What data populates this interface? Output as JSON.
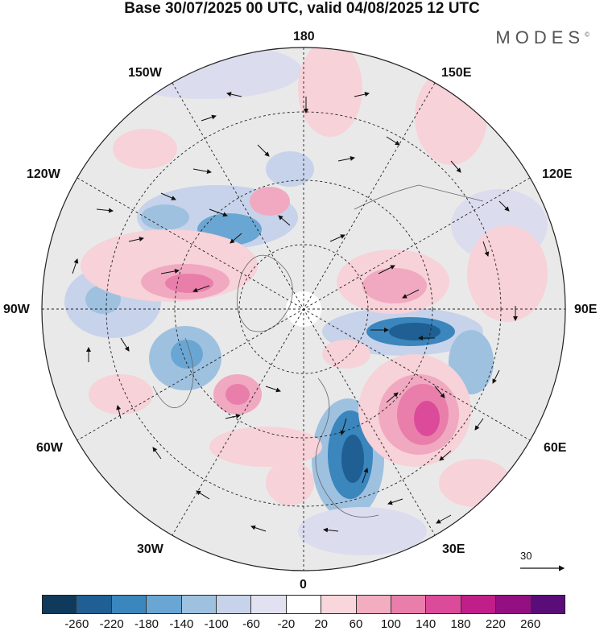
{
  "title": "Base 30/07/2025 00 UTC, valid 04/08/2025 12 UTC",
  "brand": "MODES",
  "brand_mark": "©",
  "longitude_labels": {
    "top": "180",
    "bottom": "0",
    "left": "90W",
    "right": "90E",
    "upper_left_1": "150W",
    "upper_left_2": "120W",
    "upper_right_1": "150E",
    "upper_right_2": "120E",
    "lower_left_1": "60W",
    "lower_left_2": "30W",
    "lower_right_1": "60E",
    "lower_right_2": "30E"
  },
  "reference_vector": {
    "label": "30"
  },
  "colorbar": {
    "ticks": [
      "-260",
      "-220",
      "-180",
      "-140",
      "-100",
      "-60",
      "-20",
      "20",
      "60",
      "100",
      "140",
      "180",
      "220",
      "260"
    ],
    "colors": [
      "#0f3a5c",
      "#1f5f93",
      "#3a86bd",
      "#6aa6d3",
      "#9fc1e0",
      "#c7d3ea",
      "#e2e1f1",
      "#ffffff",
      "#f8d6dc",
      "#f2adc0",
      "#ea7eaa",
      "#dc4b9a",
      "#c01f8a",
      "#931083",
      "#5a0d78"
    ]
  },
  "map_colors": {
    "ocean_grey": "#e9e9ea",
    "neg_light": "#dcdcef",
    "neg_mid": "#9fb9dd",
    "neg_strong": "#3e7fb6",
    "neg_core": "#1b5a8a",
    "pos_light": "#f7d2d8",
    "pos_mid": "#f0a9c0",
    "pos_strong": "#e46cae",
    "pos_core": "#cc2e94"
  }
}
